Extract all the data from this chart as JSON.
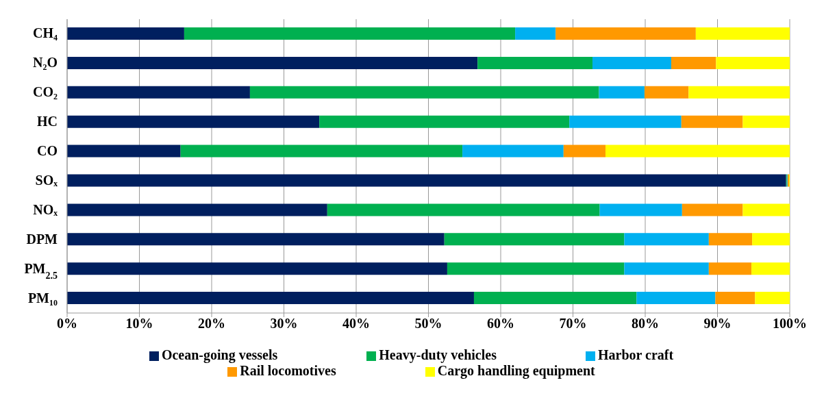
{
  "chart_data": {
    "type": "bar",
    "orientation": "horizontal",
    "stacked": true,
    "categories": [
      "CH₄",
      "N₂O",
      "CO₂",
      "HC",
      "CO",
      "SOₓ",
      "NOₓ",
      "DPM",
      "PM$_{2.5}$",
      "PM₁₀"
    ],
    "series": [
      {
        "name": "Ocean-going vessels",
        "color": "#001f5f",
        "values": [
          16.2,
          56.8,
          25.3,
          34.9,
          15.7,
          99.5,
          36,
          52.2,
          52.6,
          56.3
        ]
      },
      {
        "name": "Heavy-duty vehicles",
        "color": "#00b050",
        "values": [
          45.8,
          15.9,
          48.3,
          34.6,
          39,
          0.1,
          37.7,
          24.9,
          24.5,
          22.5
        ]
      },
      {
        "name": "Harbor craft",
        "color": "#00b0f0",
        "values": [
          5.6,
          10.9,
          6.3,
          15.5,
          14,
          0.1,
          11.4,
          11.7,
          11.7,
          10.9
        ]
      },
      {
        "name": "Rail locomotives",
        "color": "#ff9900",
        "values": [
          19.4,
          6.2,
          6.1,
          8.5,
          5.8,
          0.2,
          8.4,
          6,
          5.9,
          5.5
        ]
      },
      {
        "name": "Cargo handling equipment",
        "color": "#ffff00",
        "values": [
          13,
          10.2,
          14,
          6.5,
          25.5,
          0.1,
          6.5,
          5.2,
          5.3,
          4.8
        ]
      }
    ],
    "xlim": [
      0,
      100
    ],
    "xticks": [
      {
        "value": 0,
        "label": "0%"
      },
      {
        "value": 10,
        "label": "10%"
      },
      {
        "value": 20,
        "label": "20%"
      },
      {
        "value": 30,
        "label": "30%"
      },
      {
        "value": 40,
        "label": "40%"
      },
      {
        "value": 50,
        "label": "50%"
      },
      {
        "value": 60,
        "label": "60%"
      },
      {
        "value": 70,
        "label": "70%"
      },
      {
        "value": 80,
        "label": "80%"
      },
      {
        "value": 90,
        "label": "90%"
      },
      {
        "value": 100,
        "label": "100%"
      }
    ],
    "grid": "x",
    "legend": "bottom"
  }
}
